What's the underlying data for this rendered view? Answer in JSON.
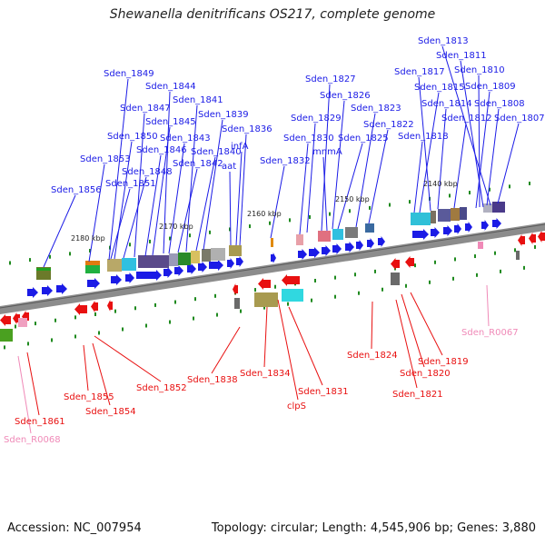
{
  "title": "Shewanella denitrificans OS217, complete genome",
  "footer": {
    "accession": "Accession: NC_007954",
    "summary": "Topology: circular; Length: 4,545,906 bp; Genes: 3,880"
  },
  "colors": {
    "forward": "#1b1be6",
    "reverse": "#e81010",
    "rna_label": "#f08ab8",
    "backbone": "#8c8c8c",
    "tick": "#1f8a1f"
  },
  "ruler_labels": [
    "2180 kbp",
    "2170 kbp",
    "2160 kbp",
    "2150 kbp",
    "2140 kbp"
  ],
  "forward_genes": [
    "Sden_1813",
    "Sden_1811",
    "Sden_1849",
    "Sden_1817",
    "Sden_1810",
    "Sden_1844",
    "Sden_1827",
    "Sden_1815",
    "Sden_1809",
    "Sden_1826",
    "Sden_1841",
    "Sden_1847",
    "Sden_1814",
    "Sden_1808",
    "Sden_1823",
    "Sden_1845",
    "Sden_1839",
    "Sden_1829",
    "Sden_1812",
    "Sden_1807",
    "Sden_1836",
    "Sden_1822",
    "Sden_1850",
    "Sden_1843",
    "Sden_1830",
    "Sden_1825",
    "Sden_1818",
    "Sden_1846",
    "Sden_1840",
    "infA",
    "mnmA",
    "Sden_1853",
    "Sden_1842",
    "aat",
    "Sden_1832",
    "Sden_1848",
    "Sden_1851",
    "Sden_1856"
  ],
  "reverse_genes": [
    "Sden_1824",
    "Sden_1819",
    "Sden_1820",
    "Sden_1838",
    "Sden_1834",
    "Sden_1852",
    "Sden_1821",
    "Sden_1831",
    "Sden_1855",
    "clpS",
    "Sden_1854",
    "Sden_1861"
  ],
  "rna_genes": [
    "Sden_R0067",
    "Sden_R0068"
  ]
}
